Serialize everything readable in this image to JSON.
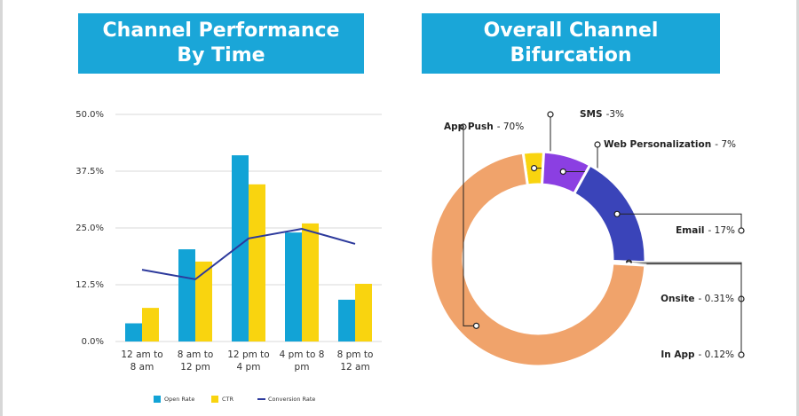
{
  "chart_data": [
    {
      "type": "bar",
      "title": "Channel Performance By Time",
      "categories": [
        "12 am to 8 am",
        "8 am to 12 pm",
        "12 pm to 4 pm",
        "4 pm to 8 pm",
        "8 pm to 12 am"
      ],
      "series": [
        {
          "name": "Open Rate",
          "color": "#12a3d6",
          "values": [
            4,
            20.3,
            41,
            24,
            9.2
          ]
        },
        {
          "name": "CTR",
          "color": "#f9d40f",
          "values": [
            7.4,
            17.6,
            34.6,
            26,
            12.7
          ]
        },
        {
          "name": "Conversion Rate",
          "color": "#2d3a9c",
          "type": "line",
          "values": [
            15.8,
            13.7,
            22.7,
            24.8,
            21.5
          ]
        }
      ],
      "ylim": [
        0,
        50
      ],
      "yticks": [
        {
          "value": 0,
          "label": "0.0%"
        },
        {
          "value": 12.5,
          "label": "12.5%"
        },
        {
          "value": 25,
          "label": "25.0%"
        },
        {
          "value": 37.5,
          "label": "37.5%"
        },
        {
          "value": 50,
          "label": "50.0%"
        }
      ],
      "grid": true,
      "legend": "bottom"
    },
    {
      "type": "donut",
      "title": "Overall Channel Bifurcation",
      "categories": [
        "SMS",
        "Web Personalization",
        "Email",
        "Onsite",
        "In App",
        "App Push"
      ],
      "values": [
        3,
        7,
        17,
        0.31,
        0.12,
        70
      ],
      "value_labels": [
        "-3%",
        "- 7%",
        "- 17%",
        "- 0.31%",
        "- 0.12%",
        "- 70%"
      ],
      "colors": [
        "#f9d40f",
        "#8b3fe2",
        "#3a44b9",
        "#1aa8d4",
        "#6a3fc9",
        "#f0a36b"
      ]
    }
  ]
}
